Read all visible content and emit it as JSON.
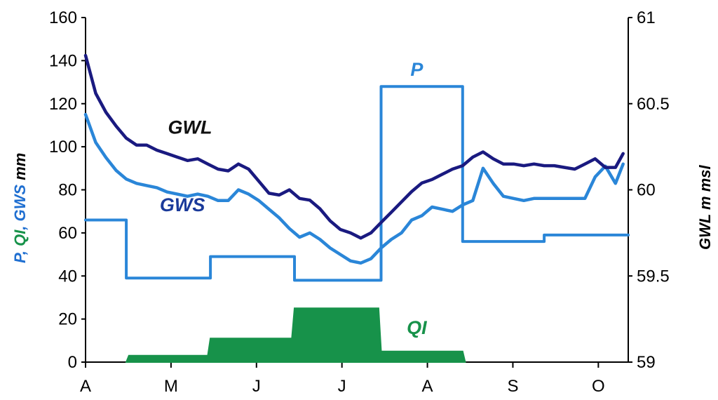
{
  "chart_data": {
    "type": "line",
    "x_axis": {
      "month_ticks": [
        "A",
        "M",
        "J",
        "J",
        "A",
        "S",
        "O"
      ],
      "unit": "days from start of record (Apr 1)",
      "range": [
        0,
        213
      ]
    },
    "left_axis": {
      "range": [
        0,
        160
      ],
      "ticks": [
        "0",
        "20",
        "40",
        "60",
        "80",
        "100",
        "120",
        "140",
        "160"
      ],
      "label_parts": [
        {
          "text": "P",
          "color": "#1f6fd1"
        },
        {
          "text": ", ",
          "color": "#1f6fd1"
        },
        {
          "text": "QI",
          "color": "#17924a"
        },
        {
          "text": ", ",
          "color": "#1f6fd1"
        },
        {
          "text": "GWS",
          "color": "#1f6fd1"
        },
        {
          "text": "  mm",
          "color": "#000000"
        }
      ]
    },
    "right_axis": {
      "range": [
        59,
        61
      ],
      "ticks": [
        "59",
        "59.5",
        "60",
        "60.5",
        "61"
      ],
      "label_parts": [
        {
          "text": "GWL",
          "color": "#000000"
        },
        {
          "text": "  m  msl",
          "color": "#000000"
        }
      ]
    },
    "series": [
      {
        "name": "GWL",
        "axis": "right",
        "kind": "line",
        "color": "#1a1a80",
        "x": [
          0,
          4,
          8,
          12,
          16,
          20,
          24,
          28,
          32,
          36,
          40,
          44,
          48,
          52,
          56,
          60,
          64,
          68,
          72,
          76,
          80,
          84,
          88,
          92,
          96,
          100,
          104,
          108,
          112,
          116,
          120,
          124,
          128,
          132,
          136,
          140,
          144,
          148,
          152,
          156,
          160,
          164,
          168,
          172,
          176,
          180,
          184,
          188,
          192,
          196,
          200,
          204,
          208,
          211
        ],
        "y": [
          60.78,
          60.56,
          60.45,
          60.37,
          60.3,
          60.26,
          60.26,
          60.23,
          60.21,
          60.19,
          60.17,
          60.18,
          60.15,
          60.12,
          60.11,
          60.15,
          60.12,
          60.05,
          59.98,
          59.97,
          60.0,
          59.95,
          59.94,
          59.89,
          59.82,
          59.77,
          59.75,
          59.72,
          59.75,
          59.81,
          59.87,
          59.93,
          59.99,
          60.04,
          60.06,
          60.09,
          60.12,
          60.14,
          60.19,
          60.22,
          60.18,
          60.15,
          60.15,
          60.14,
          60.15,
          60.14,
          60.14,
          60.13,
          60.12,
          60.15,
          60.18,
          60.13,
          60.13,
          60.21
        ]
      },
      {
        "name": "GWS",
        "axis": "left",
        "kind": "line",
        "color": "#2a86d8",
        "x": [
          0,
          4,
          8,
          12,
          16,
          20,
          24,
          28,
          32,
          36,
          40,
          44,
          48,
          52,
          56,
          60,
          64,
          68,
          72,
          76,
          80,
          84,
          88,
          92,
          96,
          100,
          104,
          108,
          112,
          116,
          120,
          124,
          128,
          132,
          136,
          140,
          144,
          148,
          152,
          156,
          160,
          164,
          168,
          172,
          176,
          180,
          184,
          188,
          192,
          196,
          200,
          204,
          208,
          211
        ],
        "y": [
          115,
          102,
          95,
          89,
          85,
          83,
          82,
          81,
          79,
          78,
          77,
          78,
          77,
          75,
          75,
          80,
          78,
          75,
          71,
          67,
          62,
          58,
          60,
          57,
          53,
          50,
          47,
          46,
          48,
          53,
          57,
          60,
          66,
          68,
          72,
          71,
          70,
          73,
          75,
          90,
          83,
          77,
          76,
          75,
          76,
          76,
          76,
          76,
          76,
          76,
          86,
          91,
          83,
          92
        ]
      },
      {
        "name": "P",
        "axis": "left",
        "kind": "step",
        "color": "#2a86d8",
        "x": [
          0,
          16,
          16,
          49,
          49,
          82,
          82,
          116,
          116,
          148,
          148,
          180,
          180,
          213
        ],
        "y": [
          66,
          66,
          39,
          39,
          49,
          49,
          38,
          38,
          128,
          128,
          56,
          56,
          59,
          59
        ]
      },
      {
        "name": "QI",
        "axis": "left",
        "kind": "area",
        "color": "#17924a",
        "x": [
          16,
          17,
          48,
          49,
          81,
          82,
          115,
          116,
          148,
          149
        ],
        "y": [
          0,
          3,
          3,
          11,
          11,
          25,
          25,
          5,
          5,
          0
        ]
      }
    ],
    "annotations": [
      {
        "text": "GWL",
        "color": "#111111",
        "x": 41,
        "y": 106
      },
      {
        "text": "GWS",
        "color": "#1a3a9a",
        "x": 38,
        "y": 70
      },
      {
        "text": "P",
        "color": "#2a86d8",
        "x": 130,
        "y": 133
      },
      {
        "text": "QI",
        "color": "#17924a",
        "x": 130,
        "y": 13
      }
    ],
    "grid": false,
    "legend": "none"
  }
}
